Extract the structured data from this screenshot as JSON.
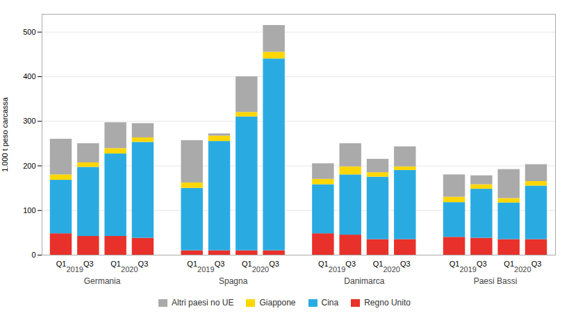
{
  "chart_data": {
    "type": "bar",
    "stacked": true,
    "categories": [
      "Q1",
      "Q3",
      "Q1",
      "Q3",
      "Q1",
      "Q3",
      "Q1",
      "Q3",
      "Q1",
      "Q3",
      "Q1",
      "Q3",
      "Q1",
      "Q3",
      "Q1",
      "Q3"
    ],
    "groups": [
      "Germania",
      "Spagna",
      "Danimarca",
      "Paesi Bassi"
    ],
    "subgroups": [
      "2019",
      "2020"
    ],
    "series": [
      {
        "name": "Regno Unito",
        "color": "#e8312a",
        "values": [
          48,
          42,
          42,
          38,
          10,
          10,
          10,
          10,
          48,
          45,
          35,
          35,
          40,
          38,
          35,
          35
        ]
      },
      {
        "name": "Cina",
        "color": "#29abe2",
        "values": [
          120,
          155,
          185,
          215,
          140,
          245,
          300,
          430,
          110,
          135,
          140,
          155,
          78,
          110,
          82,
          120
        ]
      },
      {
        "name": "Giappone",
        "color": "#ffd700",
        "values": [
          12,
          10,
          12,
          10,
          12,
          12,
          10,
          15,
          12,
          18,
          10,
          8,
          12,
          10,
          10,
          10
        ]
      },
      {
        "name": "Altri paesi no UE",
        "color": "#aaaaaa",
        "values": [
          80,
          43,
          58,
          32,
          95,
          5,
          80,
          60,
          35,
          52,
          30,
          45,
          50,
          20,
          65,
          38
        ]
      }
    ],
    "ylabel": "1.000 t peso carcassa",
    "ylim": [
      0,
      540
    ],
    "yticks": [
      0,
      100,
      200,
      300,
      400,
      500
    ],
    "grid": true,
    "legend": "bottom"
  }
}
